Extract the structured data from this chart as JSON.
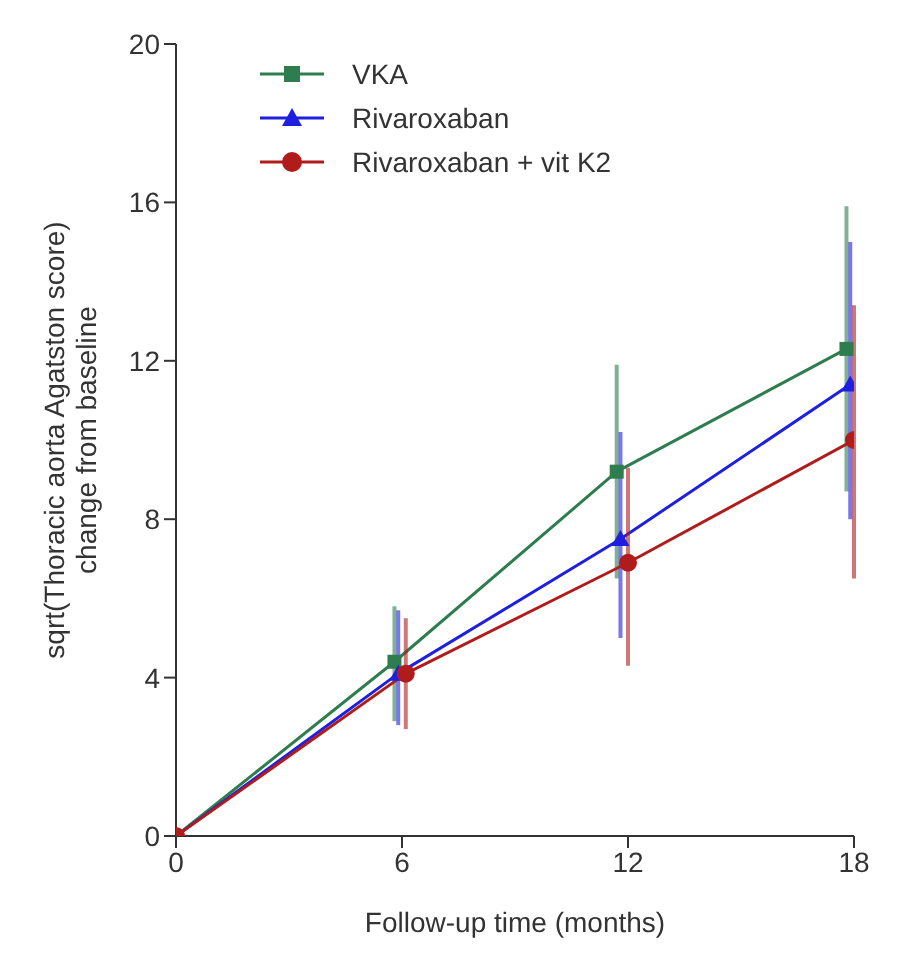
{
  "chart_data": {
    "type": "line",
    "xlabel": "Follow-up time (months)",
    "ylabel": "sqrt(Thoracic aorta Agatston score)\nchange from baseline",
    "xlim": [
      0,
      18
    ],
    "xticks": [
      0,
      6,
      12,
      18
    ],
    "ylim": [
      0,
      20
    ],
    "yticks": [
      0,
      4,
      8,
      12,
      16,
      20
    ],
    "grid": false,
    "legend": "top left",
    "line_style": "solid",
    "series": [
      {
        "name": "VKA",
        "color": "#2e7d4f",
        "marker": "square",
        "x": [
          0,
          5.8,
          11.7,
          17.8
        ],
        "values": [
          0,
          4.4,
          9.2,
          12.3
        ],
        "errors": [
          null,
          [
            2.9,
            5.8
          ],
          [
            6.5,
            11.9
          ],
          [
            8.7,
            15.9
          ]
        ]
      },
      {
        "name": "Rivaroxaban",
        "color": "#1f1fe0",
        "marker": "triangle",
        "x": [
          0,
          5.9,
          11.8,
          17.9
        ],
        "values": [
          0,
          4.1,
          7.5,
          11.4
        ],
        "errors": [
          null,
          [
            2.8,
            5.7
          ],
          [
            5.0,
            10.2
          ],
          [
            8.0,
            15.0
          ]
        ]
      },
      {
        "name": "Rivaroxaban + vit K2",
        "color": "#b01c1c",
        "marker": "circle",
        "x": [
          0,
          6.1,
          12,
          18
        ],
        "values": [
          0,
          4.1,
          6.9,
          10.0
        ],
        "errors": [
          null,
          [
            2.7,
            5.5
          ],
          [
            4.3,
            9.3
          ],
          [
            6.5,
            13.4
          ]
        ]
      }
    ]
  }
}
